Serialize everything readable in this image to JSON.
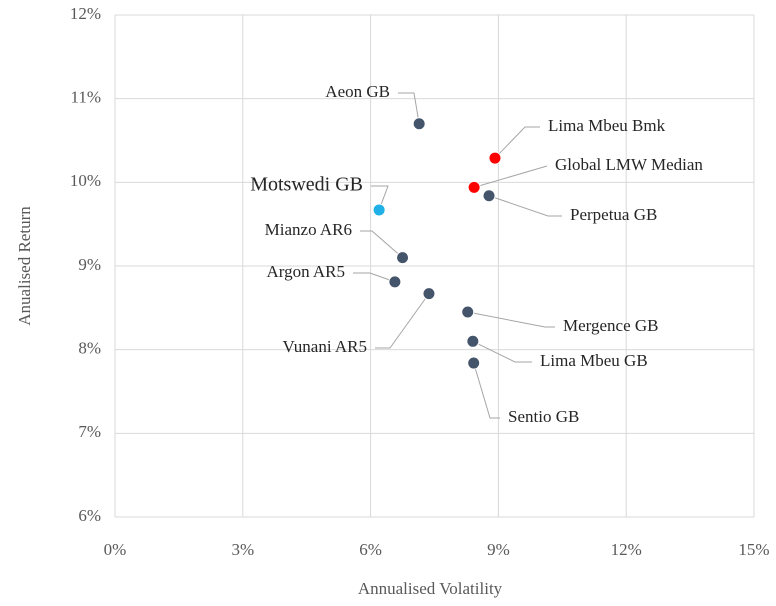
{
  "chart_data": {
    "type": "scatter",
    "x_label": "Annualised Volatility",
    "y_label": "Anualised Return",
    "labels": [
      "Aeon GB",
      "Lima Mbeu Bmk",
      "Global LMW Median",
      "Perpetua GB",
      "Motswedi GB",
      "Mianzo AR6",
      "Argon AR5",
      "Vunani AR5",
      "Mergence GB",
      "Lima Mbeu GB",
      "Sentio GB"
    ],
    "x": [
      7.14,
      8.92,
      8.43,
      8.78,
      6.2,
      6.75,
      6.57,
      7.37,
      8.28,
      8.4,
      8.42
    ],
    "values": [
      10.7,
      10.29,
      9.94,
      9.84,
      9.67,
      9.1,
      8.81,
      8.67,
      8.45,
      8.1,
      7.84
    ],
    "colors": [
      "#44546a",
      "#ff0000",
      "#ff0000",
      "#44546a",
      "#1fb0e8",
      "#44546a",
      "#44546a",
      "#44546a",
      "#44546a",
      "#44546a",
      "#44546a"
    ],
    "xlim": [
      0,
      15
    ],
    "xticks": [
      {
        "value": 0,
        "label": "0%"
      },
      {
        "value": 3,
        "label": "3%"
      },
      {
        "value": 6,
        "label": "6%"
      },
      {
        "value": 9,
        "label": "9%"
      },
      {
        "value": 12,
        "label": "12%"
      },
      {
        "value": 15,
        "label": "15%"
      }
    ],
    "ylim": [
      6,
      12
    ],
    "yticks": [
      {
        "value": 6,
        "label": "6%"
      },
      {
        "value": 7,
        "label": "7%"
      },
      {
        "value": 8,
        "label": "8%"
      },
      {
        "value": 9,
        "label": "9%"
      },
      {
        "value": 10,
        "label": "10%"
      },
      {
        "value": 11,
        "label": "11%"
      },
      {
        "value": 12,
        "label": "12%"
      }
    ],
    "grid": true
  }
}
